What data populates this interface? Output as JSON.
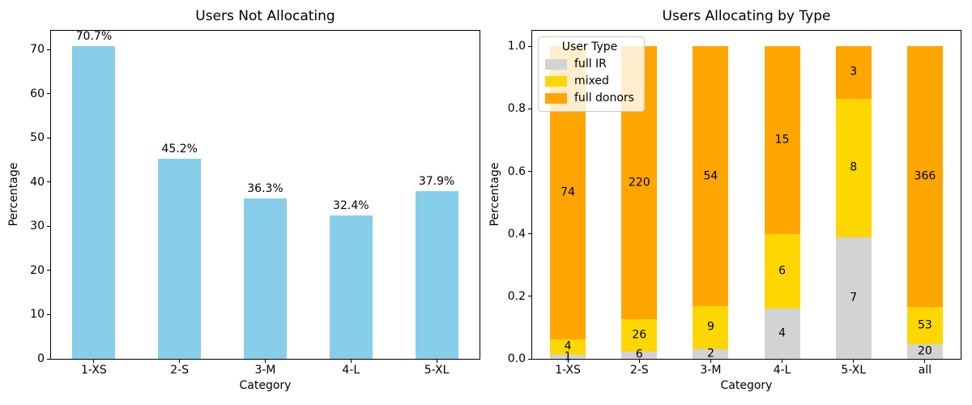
{
  "figure": {
    "background": "#ffffff",
    "spine_color": "#000000",
    "text_color": "#000000"
  },
  "chart_data": [
    {
      "type": "bar",
      "title": "Users Not Allocating",
      "xlabel": "Category",
      "ylabel": "Percentage",
      "categories": [
        "1-XS",
        "2-S",
        "3-M",
        "4-L",
        "5-XL"
      ],
      "values": [
        70.7,
        45.2,
        36.3,
        32.4,
        37.9
      ],
      "bar_labels": [
        "70.7%",
        "45.2%",
        "36.3%",
        "32.4%",
        "37.9%"
      ],
      "bar_color": "#87CEEB",
      "ylim": [
        0,
        74.235
      ],
      "yticks": [
        "0",
        "10",
        "20",
        "30",
        "40",
        "50",
        "60",
        "70"
      ],
      "grid": false,
      "legend_position": "none"
    },
    {
      "type": "stacked-bar-normalized",
      "title": "Users Allocating by Type",
      "xlabel": "Category",
      "ylabel": "Percentage",
      "categories": [
        "1-XS",
        "2-S",
        "3-M",
        "4-L",
        "5-XL",
        "all"
      ],
      "series": [
        {
          "name": "full IR",
          "color": "#D3D3D3",
          "counts": [
            1,
            6,
            2,
            4,
            7,
            20
          ]
        },
        {
          "name": "mixed",
          "color": "#FFD700",
          "counts": [
            4,
            26,
            9,
            6,
            8,
            53
          ]
        },
        {
          "name": "full donors",
          "color": "#FFA500",
          "counts": [
            74,
            220,
            54,
            15,
            3,
            366
          ]
        }
      ],
      "ylim": [
        0,
        1.05
      ],
      "yticks": [
        "0.0",
        "0.2",
        "0.4",
        "0.6",
        "0.8",
        "1.0"
      ],
      "grid": false,
      "legend": {
        "title": "User Type",
        "position": "upper-left"
      }
    }
  ]
}
